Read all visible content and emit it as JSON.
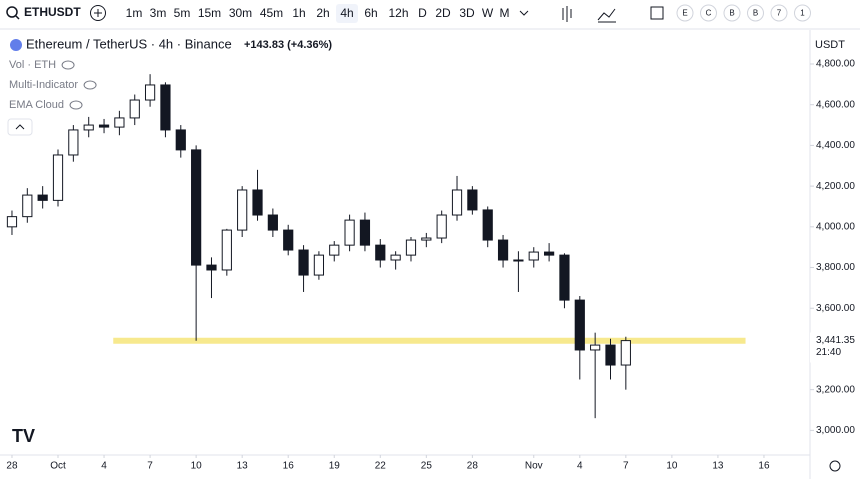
{
  "toolbar": {
    "symbol": "ETHUSDT",
    "intervals": [
      "1m",
      "3m",
      "5m",
      "15m",
      "30m",
      "45m",
      "1h",
      "2h",
      "4h",
      "6h",
      "12h",
      "D",
      "2D",
      "3D",
      "W",
      "M"
    ],
    "active_interval": 8,
    "letters": [
      "E",
      "C",
      "B",
      "B",
      "7",
      "1"
    ]
  },
  "chart_data": {
    "type": "candlestick",
    "title": "Ethereum / TetherUS · 4h · Binance",
    "change": "+143.83 (+4.36%)",
    "indicators": [
      "Vol · ETH",
      "Multi-Indicator",
      "EMA Cloud"
    ],
    "currency": "USDT",
    "x": [
      0,
      1,
      2,
      3,
      4,
      5,
      6,
      7,
      8,
      9,
      10,
      11,
      12,
      13,
      14,
      15,
      16,
      17,
      18,
      19,
      20,
      21,
      22,
      23,
      24,
      25,
      26,
      27,
      28,
      29,
      30,
      31,
      32,
      33,
      34,
      35,
      36,
      37,
      38,
      39,
      40
    ],
    "open": [
      4000,
      4050,
      4156,
      4130,
      4353,
      4476,
      4500,
      4490,
      4535,
      4623,
      4697,
      4476,
      4378,
      3812,
      3788,
      3984,
      4181,
      4058,
      3984,
      3886,
      3763,
      3861,
      3910,
      4033,
      3910,
      3837,
      3861,
      3935,
      3945,
      4058,
      4181,
      4083,
      3935,
      3837,
      3837,
      3876,
      3861,
      3640,
      3395,
      3419,
      3321
    ],
    "high": [
      4080,
      4190,
      4200,
      4380,
      4500,
      4540,
      4530,
      4570,
      4650,
      4750,
      4710,
      4500,
      4400,
      3850,
      3990,
      4200,
      4280,
      4090,
      4010,
      3910,
      3880,
      3930,
      4060,
      4070,
      3940,
      3880,
      3950,
      3970,
      4080,
      4250,
      4200,
      4100,
      3960,
      3880,
      3900,
      3920,
      3870,
      3660,
      3480,
      3450,
      3460
    ],
    "low": [
      3960,
      4020,
      4090,
      4100,
      4320,
      4440,
      4460,
      4450,
      4500,
      4590,
      4440,
      4340,
      3440,
      3650,
      3760,
      3950,
      4030,
      3950,
      3860,
      3680,
      3740,
      3830,
      3880,
      3880,
      3800,
      3790,
      3830,
      3900,
      3920,
      4030,
      4060,
      3900,
      3800,
      3680,
      3800,
      3830,
      3600,
      3250,
      3060,
      3250,
      3200
    ],
    "close": [
      4050,
      4156,
      4130,
      4353,
      4476,
      4500,
      4490,
      4535,
      4623,
      4697,
      4476,
      4378,
      3812,
      3788,
      3984,
      4181,
      4058,
      3984,
      3886,
      3763,
      3861,
      3910,
      4033,
      3910,
      3837,
      3861,
      3935,
      3945,
      4058,
      4181,
      4083,
      3935,
      3837,
      3837,
      3876,
      3861,
      3640,
      3395,
      3419,
      3321,
      3441
    ],
    "up_color": "#ffffff",
    "down_color": "#131722",
    "wick_color": "#131722",
    "xlim": [
      -0.78,
      52
    ],
    "ylim": [
      2879,
      4967
    ],
    "xticks": [
      {
        "value": 0,
        "label": "28"
      },
      {
        "value": 3,
        "label": "Oct"
      },
      {
        "value": 6,
        "label": "4"
      },
      {
        "value": 9,
        "label": "7"
      },
      {
        "value": 12,
        "label": "10"
      },
      {
        "value": 15,
        "label": "13"
      },
      {
        "value": 18,
        "label": "16"
      },
      {
        "value": 21,
        "label": "19"
      },
      {
        "value": 24,
        "label": "22"
      },
      {
        "value": 27,
        "label": "25"
      },
      {
        "value": 30,
        "label": "28"
      },
      {
        "value": 34,
        "label": "Nov"
      },
      {
        "value": 37,
        "label": "4"
      },
      {
        "value": 40,
        "label": "7"
      },
      {
        "value": 43,
        "label": "10"
      },
      {
        "value": 46,
        "label": "13"
      },
      {
        "value": 49,
        "label": "16"
      }
    ],
    "yticks": [
      {
        "value": 3000,
        "label": "3,000.00"
      },
      {
        "value": 3200,
        "label": "3,200.00"
      },
      {
        "value": 3400,
        "label": "3,400.00"
      },
      {
        "value": 3600,
        "label": "3,600.00"
      },
      {
        "value": 3800,
        "label": "3,800.00"
      },
      {
        "value": 4000,
        "label": "4,000.00"
      },
      {
        "value": 4200,
        "label": "4,200.00"
      },
      {
        "value": 4400,
        "label": "4,400.00"
      },
      {
        "value": 4600,
        "label": "4,600.00"
      },
      {
        "value": 4800,
        "label": "4,800.00"
      }
    ],
    "hline": {
      "value": 3440,
      "x_from": 6.6,
      "x_to": 47.8,
      "color": "#f7e98e"
    },
    "last_price": {
      "value": 3441.35,
      "label": "3,441.35",
      "countdown": "21:40"
    }
  }
}
